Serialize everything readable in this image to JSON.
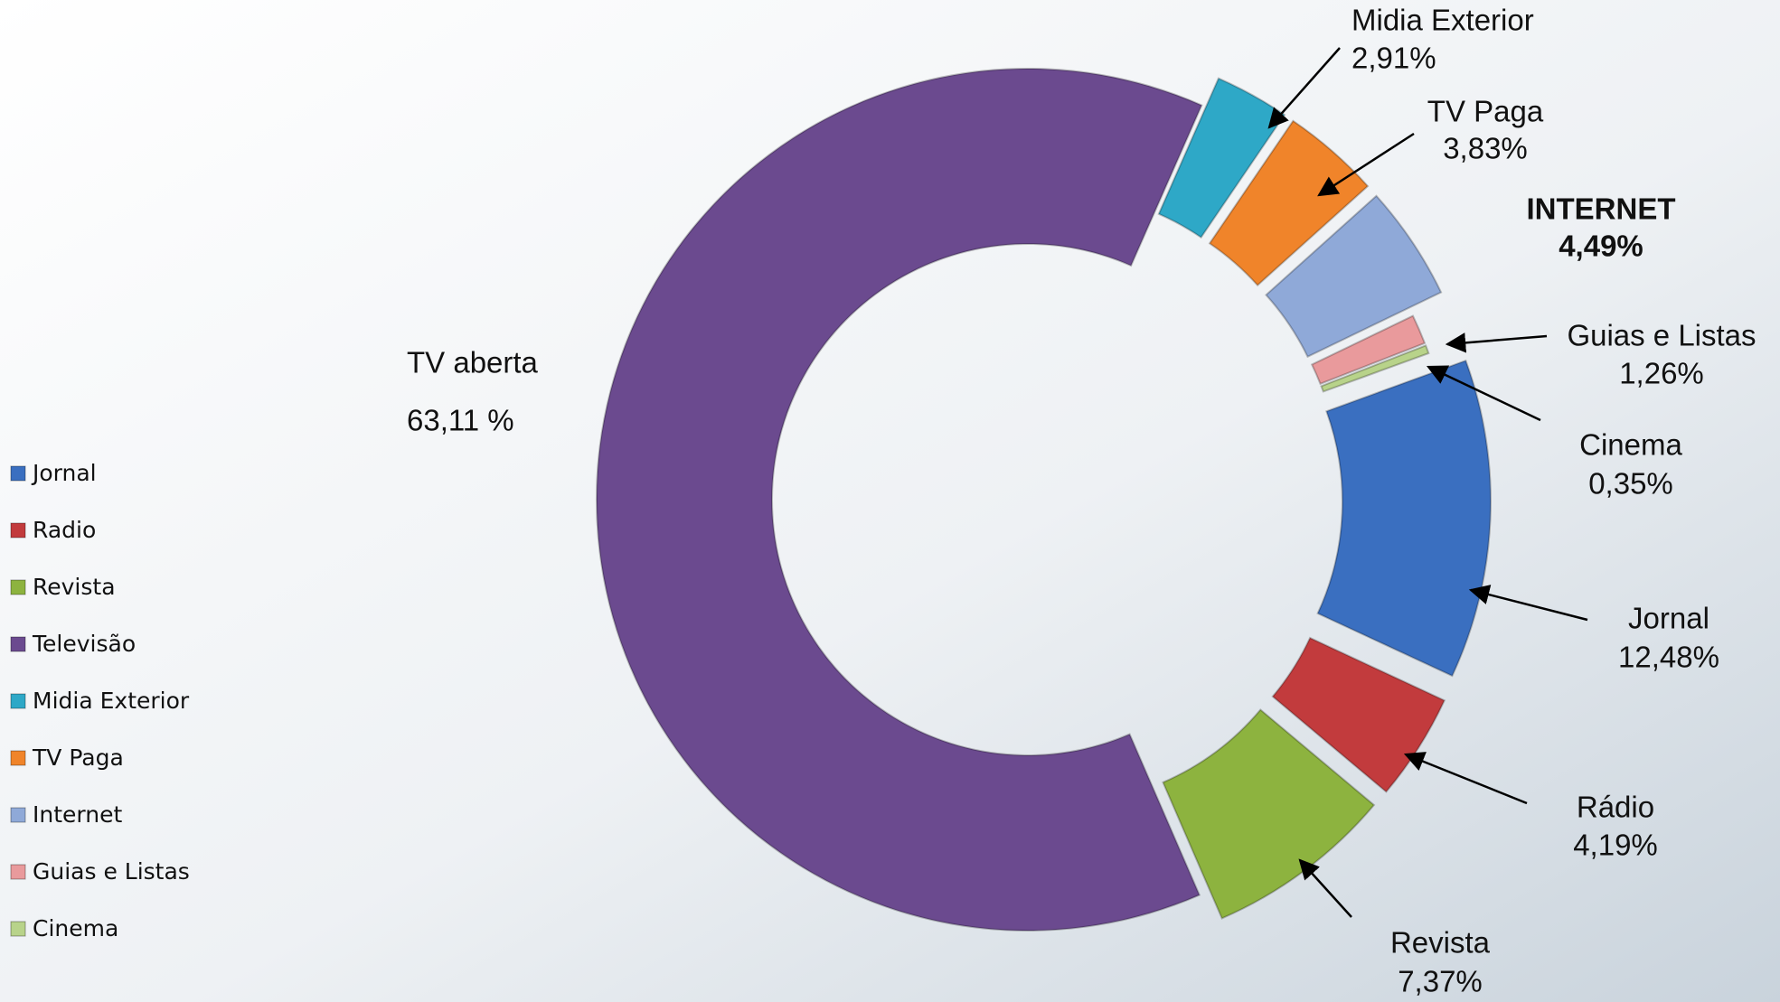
{
  "chart_data": {
    "type": "doughnut",
    "categories": [
      "Jornal",
      "Radio",
      "Revista",
      "Televisão",
      "Midia Exterior",
      "TV Paga",
      "Internet",
      "Guias e Listas",
      "Cinema"
    ],
    "label_names": [
      "Jornal",
      "Rádio",
      "Revista",
      "TV aberta",
      "Midia Exterior",
      "TV Paga",
      "INTERNET",
      "Guias e Listas",
      "Cinema"
    ],
    "values": [
      12.48,
      4.19,
      7.37,
      63.11,
      2.91,
      3.83,
      4.49,
      1.26,
      0.35
    ],
    "value_labels": [
      "12,48%",
      "4,19%",
      "7,37%",
      "63,11 %",
      "2,91%",
      "3,83%",
      "4,49%",
      "1,26%",
      "0,35%"
    ],
    "colors": [
      "#3a6fc0",
      "#c23b3d",
      "#8db33f",
      "#6b4a8f",
      "#2ea8c7",
      "#f0842a",
      "#8fa9d8",
      "#e99a9c",
      "#b8d38a"
    ],
    "legend": "left"
  }
}
